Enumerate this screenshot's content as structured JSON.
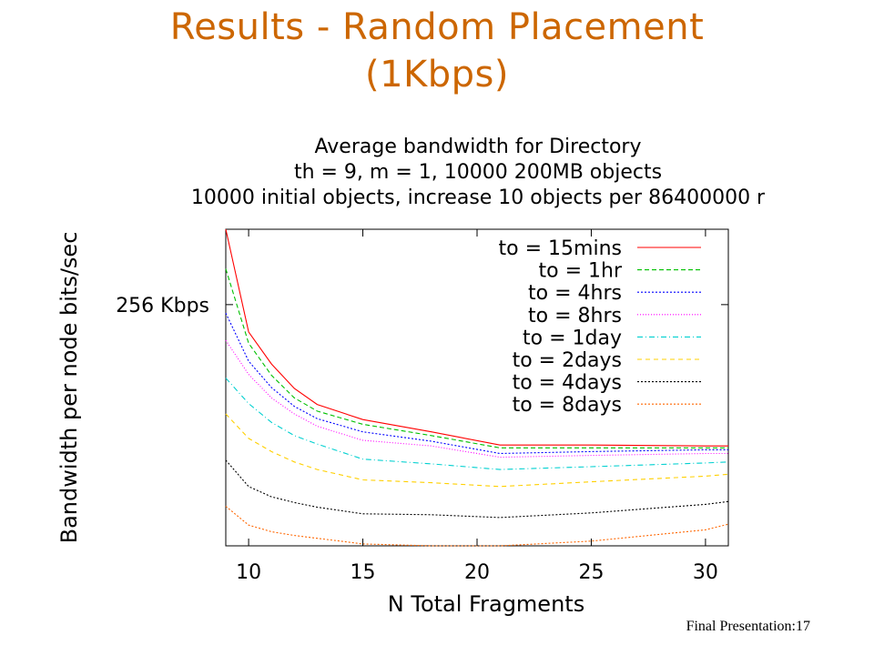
{
  "slide": {
    "title_line1": "Results - Random Placement",
    "title_line2": "(1Kbps)",
    "footer": "Final Presentation:17"
  },
  "chart_data": {
    "type": "line",
    "title": [
      "Average bandwidth for Directory",
      "th = 9, m = 1, 10000 200MB objects",
      "10000 initial objects, increase 10 objects per 86400000 r"
    ],
    "xlabel": "N Total Fragments",
    "ylabel": "Bandwidth per node bits/sec",
    "xlim": [
      9,
      31
    ],
    "ylim": [
      0,
      336
    ],
    "xticks": [
      10,
      15,
      20,
      25,
      30
    ],
    "yticks": [
      {
        "value": 256,
        "label": "256 Kbps"
      }
    ],
    "legend_position": "top-right",
    "grid": false,
    "x": [
      9,
      10,
      11,
      12,
      13,
      15,
      18,
      21,
      25,
      30,
      31
    ],
    "series": [
      {
        "name": "to = 15mins",
        "color": "#ff0000",
        "dash": "",
        "values": [
          336,
          227,
          193,
          167,
          150,
          134,
          121,
          107,
          107,
          106,
          106
        ]
      },
      {
        "name": "to = 1hr",
        "color": "#00c000",
        "dash": "5,3",
        "values": [
          294,
          215,
          181,
          157,
          143,
          129,
          117,
          104,
          104,
          104,
          104
        ]
      },
      {
        "name": "to = 4hrs",
        "color": "#0000ff",
        "dash": "2,2",
        "values": [
          247,
          196,
          168,
          148,
          135,
          121,
          111,
          98,
          100,
          102,
          102
        ]
      },
      {
        "name": "to = 8hrs",
        "color": "#ff00ff",
        "dash": "1,2",
        "values": [
          218,
          182,
          157,
          140,
          127,
          112,
          106,
          94,
          96,
          98,
          98
        ]
      },
      {
        "name": "to = 1day",
        "color": "#00d0d0",
        "dash": "6,3,1,3",
        "values": [
          178,
          151,
          131,
          117,
          108,
          92,
          87,
          81,
          84,
          88,
          89
        ]
      },
      {
        "name": "to = 2days",
        "color": "#ffd000",
        "dash": "5,4",
        "values": [
          140,
          114,
          100,
          89,
          81,
          70,
          67,
          63,
          68,
          74,
          76
        ]
      },
      {
        "name": "to = 4days",
        "color": "#000000",
        "dash": "2,2",
        "values": [
          91,
          63,
          52,
          46,
          41,
          34,
          33,
          30,
          35,
          44,
          47
        ]
      },
      {
        "name": "to = 8days",
        "color": "#ff6600",
        "dash": "2,2",
        "values": [
          42,
          22,
          15,
          11,
          8,
          2,
          0,
          0,
          5,
          17,
          23
        ]
      }
    ]
  }
}
